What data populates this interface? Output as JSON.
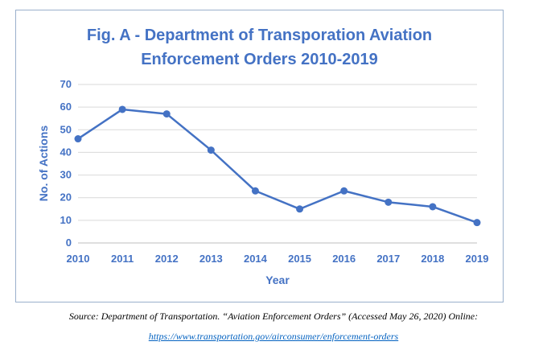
{
  "chart_data": {
    "type": "line",
    "title_line1": "Fig. A - Department of Transporation Aviation",
    "title_line2": "Enforcement Orders 2010-2019",
    "xlabel": "Year",
    "ylabel": "No. of Actions",
    "x": [
      "2010",
      "2011",
      "2012",
      "2013",
      "2014",
      "2015",
      "2016",
      "2017",
      "2018",
      "2019"
    ],
    "series": [
      {
        "values": [
          46,
          59,
          57,
          41,
          23,
          15,
          23,
          18,
          16,
          9
        ]
      }
    ],
    "ylim": [
      0,
      70
    ],
    "yticks": [
      "0",
      "10",
      "20",
      "30",
      "40",
      "50",
      "60",
      "70"
    ],
    "grid": true,
    "legend": "none",
    "line_color": "#4472c4"
  },
  "source": {
    "citation": "Source: Department of Transportation. “Aviation Enforcement Orders” (Accessed May 26, 2020) Online:",
    "url": "https://www.transportation.gov/airconsumer/enforcement-orders"
  }
}
